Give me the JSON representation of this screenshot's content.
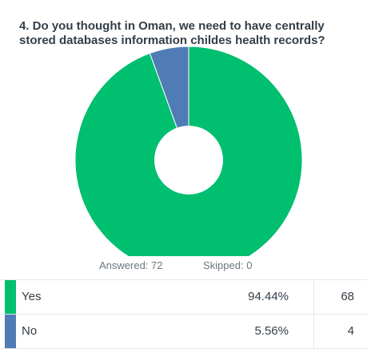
{
  "question": "4. Do you thought in Oman, we need to have centrally stored databases information childes health records?",
  "summary": {
    "answered": "Answered: 72",
    "skipped": "Skipped: 0"
  },
  "chart_data": {
    "type": "pie",
    "donut": true,
    "categories": [
      "Yes",
      "No"
    ],
    "values": [
      94.44,
      5.56
    ],
    "counts": [
      68,
      4
    ],
    "percent_labels": [
      "94.44%",
      "5.56%"
    ],
    "colors": [
      "#00bf6f",
      "#507cb6"
    ]
  }
}
